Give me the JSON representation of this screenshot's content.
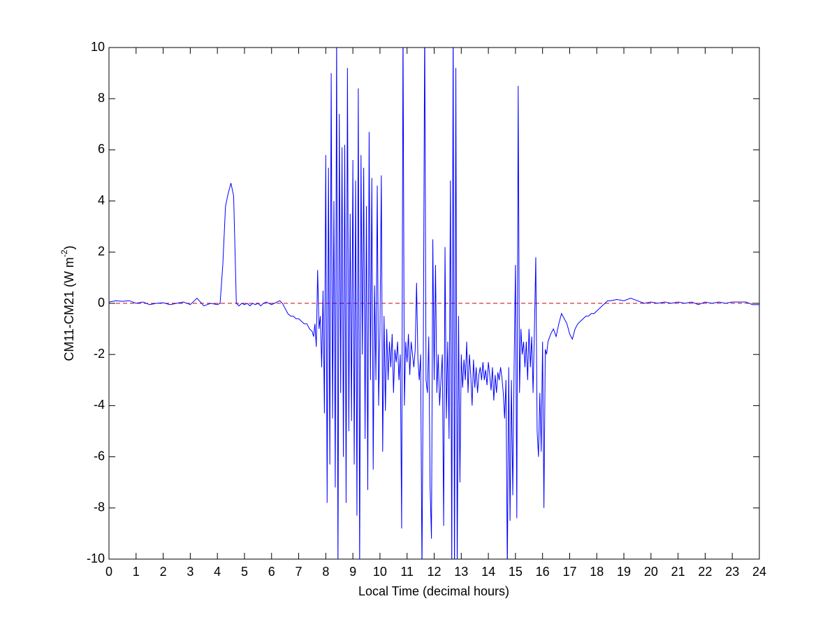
{
  "chart_data": {
    "type": "line",
    "xlabel": "Local Time (decimal hours)",
    "ylabel": {
      "text": "CM11-CM21 (W m",
      "sup": "-2",
      "end": ")"
    },
    "xlim": [
      0,
      24
    ],
    "xticks": [
      0,
      1,
      2,
      3,
      4,
      5,
      6,
      7,
      8,
      9,
      10,
      11,
      12,
      13,
      14,
      15,
      16,
      17,
      18,
      19,
      20,
      21,
      22,
      23,
      24
    ],
    "ylim": [
      -10,
      10
    ],
    "yticks": [
      -10,
      -8,
      -6,
      -4,
      -2,
      0,
      2,
      4,
      6,
      8,
      10
    ],
    "color": "#0000ff",
    "reference_line": {
      "value": 0,
      "color": "#cc0000",
      "style": "dashed"
    },
    "x": [
      0,
      0.25,
      0.5,
      0.75,
      1,
      1.25,
      1.5,
      1.75,
      2,
      2.25,
      2.5,
      2.75,
      3,
      3.25,
      3.5,
      3.75,
      4,
      4.1,
      4.2,
      4.3,
      4.4,
      4.5,
      4.6,
      4.7,
      4.8,
      4.9,
      5.0,
      5.1,
      5.2,
      5.3,
      5.4,
      5.5,
      5.6,
      5.7,
      5.8,
      5.9,
      6.0,
      6.1,
      6.2,
      6.3,
      6.4,
      6.5,
      6.6,
      6.7,
      6.8,
      6.9,
      7.0,
      7.1,
      7.2,
      7.3,
      7.4,
      7.5,
      7.55,
      7.6,
      7.65,
      7.7,
      7.75,
      7.8,
      7.85,
      7.9,
      7.95,
      8.0,
      8.05,
      8.1,
      8.15,
      8.2,
      8.25,
      8.3,
      8.35,
      8.4,
      8.45,
      8.5,
      8.55,
      8.6,
      8.65,
      8.7,
      8.75,
      8.8,
      8.85,
      8.9,
      8.95,
      9.0,
      9.05,
      9.1,
      9.15,
      9.2,
      9.25,
      9.3,
      9.35,
      9.4,
      9.45,
      9.5,
      9.55,
      9.6,
      9.65,
      9.7,
      9.75,
      9.8,
      9.85,
      9.9,
      9.95,
      10.0,
      10.05,
      10.1,
      10.15,
      10.2,
      10.25,
      10.3,
      10.35,
      10.4,
      10.45,
      10.5,
      10.55,
      10.6,
      10.65,
      10.7,
      10.75,
      10.8,
      10.85,
      10.9,
      10.95,
      11.0,
      11.05,
      11.1,
      11.15,
      11.2,
      11.25,
      11.3,
      11.35,
      11.4,
      11.45,
      11.5,
      11.55,
      11.6,
      11.65,
      11.7,
      11.75,
      11.8,
      11.85,
      11.9,
      11.95,
      12.0,
      12.05,
      12.1,
      12.15,
      12.2,
      12.25,
      12.3,
      12.35,
      12.4,
      12.45,
      12.5,
      12.55,
      12.6,
      12.65,
      12.7,
      12.75,
      12.8,
      12.85,
      12.9,
      12.95,
      13.0,
      13.05,
      13.1,
      13.15,
      13.2,
      13.25,
      13.3,
      13.35,
      13.4,
      13.45,
      13.5,
      13.55,
      13.6,
      13.65,
      13.7,
      13.75,
      13.8,
      13.85,
      13.9,
      13.95,
      14.0,
      14.05,
      14.1,
      14.15,
      14.2,
      14.25,
      14.3,
      14.35,
      14.4,
      14.45,
      14.5,
      14.55,
      14.6,
      14.65,
      14.7,
      14.75,
      14.8,
      14.85,
      14.9,
      14.95,
      15.0,
      15.05,
      15.1,
      15.15,
      15.2,
      15.25,
      15.3,
      15.35,
      15.4,
      15.45,
      15.5,
      15.55,
      15.6,
      15.65,
      15.7,
      15.75,
      15.8,
      15.85,
      15.9,
      15.95,
      16.0,
      16.05,
      16.1,
      16.15,
      16.2,
      16.3,
      16.4,
      16.5,
      16.6,
      16.7,
      16.8,
      16.9,
      17.0,
      17.1,
      17.2,
      17.3,
      17.4,
      17.5,
      17.6,
      17.7,
      17.8,
      17.9,
      18.0,
      18.1,
      18.2,
      18.3,
      18.4,
      18.5,
      18.75,
      19.0,
      19.25,
      19.5,
      19.75,
      20.0,
      20.25,
      20.5,
      20.75,
      21.0,
      21.25,
      21.5,
      21.75,
      22.0,
      22.25,
      22.5,
      22.75,
      23.0,
      23.25,
      23.5,
      23.75,
      24.0
    ],
    "values": [
      0.05,
      0.1,
      0.08,
      0.1,
      0,
      0.05,
      -0.05,
      0,
      0.02,
      -0.05,
      0,
      0.05,
      -0.05,
      0.2,
      -0.1,
      0,
      -0.05,
      0,
      1.5,
      3.8,
      4.3,
      4.7,
      4.2,
      0,
      -0.1,
      0,
      -0.05,
      0,
      -0.1,
      0,
      -0.05,
      0,
      -0.1,
      0,
      0.05,
      0,
      -0.05,
      0,
      0.05,
      0.1,
      0,
      -0.2,
      -0.4,
      -0.5,
      -0.5,
      -0.6,
      -0.6,
      -0.7,
      -0.8,
      -0.8,
      -1.0,
      -1.1,
      -1.3,
      -0.8,
      -1.7,
      1.3,
      -1.0,
      -0.5,
      -2.5,
      0.5,
      -4.3,
      5.8,
      -7.8,
      5.3,
      -6.3,
      9.0,
      -4.5,
      4.0,
      -7.2,
      10.5,
      -10.5,
      7.4,
      -3.5,
      6.1,
      -6.0,
      6.2,
      -7.8,
      9.2,
      -5.0,
      3.5,
      -4.6,
      5.6,
      -6.3,
      4.8,
      -8.3,
      8.4,
      -10.5,
      5.8,
      -2.0,
      5.3,
      -5.3,
      3.8,
      -7.3,
      6.7,
      -3.0,
      4.9,
      -6.5,
      0.7,
      -3.0,
      4.6,
      -4.0,
      -1.0,
      5.0,
      -5.8,
      -0.5,
      -4.2,
      -1.0,
      -3.0,
      -1.5,
      -2.5,
      -1.2,
      -3.5,
      -1.8,
      -2.3,
      -1.5,
      -3.0,
      -2.0,
      -8.8,
      11.0,
      -4.0,
      -1.5,
      -2.3,
      -1.2,
      -2.8,
      -1.5,
      -2.0,
      -2.5,
      -1.8,
      0.8,
      -2.2,
      -3.0,
      -2.0,
      -10.5,
      -2.0,
      11.0,
      -3.0,
      -3.5,
      -1.3,
      -7.2,
      -9.2,
      2.5,
      -3.0,
      1.5,
      -3.5,
      -2.0,
      -4.0,
      -3.0,
      -2.0,
      -8.7,
      2.2,
      -4.5,
      -1.5,
      -5.3,
      4.8,
      -10.5,
      11.0,
      -11.0,
      9.2,
      -10.5,
      -0.5,
      -7.0,
      -2.0,
      -3.3,
      -2.2,
      -3.0,
      -1.5,
      -3.5,
      -2.0,
      -2.8,
      -4.0,
      -2.2,
      -3.3,
      -2.5,
      -3.5,
      -2.8,
      -2.5,
      -3.0,
      -2.3,
      -3.0,
      -2.6,
      -3.2,
      -2.3,
      -2.8,
      -3.4,
      -2.5,
      -3.8,
      -2.8,
      -3.5,
      -2.7,
      -3.0,
      -2.5,
      -2.9,
      -3.5,
      -4.5,
      -3.0,
      -10.5,
      -2.5,
      -8.5,
      -3.0,
      -7.5,
      -2.5,
      1.5,
      -8.4,
      8.5,
      -3.5,
      -1.0,
      -2.0,
      -1.5,
      -2.5,
      -1.5,
      -3.0,
      -1.0,
      -2.5,
      -1.3,
      -3.5,
      -1.0,
      1.8,
      -5.0,
      -6.0,
      -3.5,
      -5.8,
      -1.5,
      -8.0,
      -1.8,
      -2.0,
      -1.5,
      -1.2,
      -1.0,
      -1.3,
      -0.8,
      -0.4,
      -0.6,
      -0.8,
      -1.2,
      -1.4,
      -1.0,
      -0.8,
      -0.7,
      -0.6,
      -0.5,
      -0.5,
      -0.4,
      -0.4,
      -0.3,
      -0.2,
      -0.1,
      0,
      0.1,
      0.1,
      0.15,
      0.1,
      0.2,
      0.1,
      0,
      0.05,
      0,
      0.05,
      0,
      0.05,
      0,
      0.05,
      -0.05,
      0.05,
      0,
      0.05,
      0,
      0.05,
      0.05,
      0.05,
      -0.05,
      -0.05
    ]
  }
}
